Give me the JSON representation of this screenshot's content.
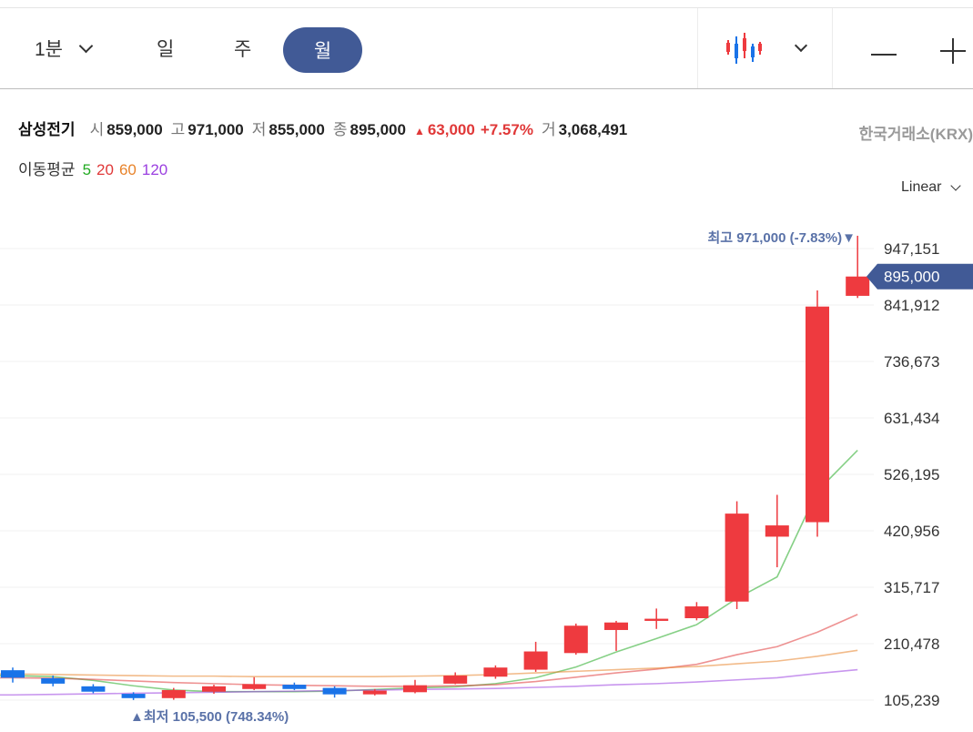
{
  "toolbar": {
    "timeframes": {
      "minute": "1분",
      "day": "일",
      "week": "주",
      "month": "월"
    },
    "selected": "월"
  },
  "quote": {
    "name": "삼성전기",
    "open_label": "시",
    "open": "859,000",
    "high_label": "고",
    "high": "971,000",
    "low_label": "저",
    "low": "855,000",
    "close_label": "종",
    "close": "895,000",
    "change": "63,000",
    "change_pct": "+7.57%",
    "volume_label": "거",
    "volume": "3,068,491",
    "exchange": "한국거래소(KRX)"
  },
  "moving_average": {
    "label": "이동평균",
    "periods": [
      "5",
      "20",
      "60",
      "120"
    ],
    "colors": [
      "#22aa22",
      "#e03838",
      "#e8832a",
      "#9b40e0"
    ]
  },
  "scale": {
    "label": "Linear"
  },
  "colors": {
    "up": "#ee3a3f",
    "down": "#1a73e8",
    "accent": "#415a96"
  },
  "chart_data": {
    "type": "candlestick",
    "y_ticks": [
      {
        "value": 947151,
        "label": "947,151"
      },
      {
        "value": 841912,
        "label": "841,912"
      },
      {
        "value": 736673,
        "label": "736,673"
      },
      {
        "value": 631434,
        "label": "631,434"
      },
      {
        "value": 526195,
        "label": "526,195"
      },
      {
        "value": 420956,
        "label": "420,956"
      },
      {
        "value": 315717,
        "label": "315,717"
      },
      {
        "value": 210478,
        "label": "210,478"
      },
      {
        "value": 105239,
        "label": "105,239"
      }
    ],
    "current": {
      "value": 895000,
      "label": "895,000"
    },
    "high_marker": {
      "value": 971000,
      "text": "최고 971,000 (-7.83%)▼"
    },
    "low_marker": {
      "value": 105500,
      "text": "▲최저 105,500 (748.34%)"
    },
    "candles": [
      {
        "o": 161000,
        "h": 166000,
        "l": 138000,
        "c": 147000
      },
      {
        "o": 146000,
        "h": 151000,
        "l": 131000,
        "c": 136000
      },
      {
        "o": 131000,
        "h": 135000,
        "l": 118000,
        "c": 121000
      },
      {
        "o": 117000,
        "h": 120000,
        "l": 105500,
        "c": 109000
      },
      {
        "o": 109000,
        "h": 128000,
        "l": 106000,
        "c": 124000
      },
      {
        "o": 121000,
        "h": 134000,
        "l": 117000,
        "c": 131000
      },
      {
        "o": 126000,
        "h": 148000,
        "l": 124000,
        "c": 135000
      },
      {
        "o": 134000,
        "h": 138000,
        "l": 124000,
        "c": 126000
      },
      {
        "o": 128000,
        "h": 131000,
        "l": 110000,
        "c": 116000
      },
      {
        "o": 116000,
        "h": 126000,
        "l": 114000,
        "c": 123000
      },
      {
        "o": 120000,
        "h": 143000,
        "l": 118000,
        "c": 133000
      },
      {
        "o": 136000,
        "h": 157000,
        "l": 135000,
        "c": 151000
      },
      {
        "o": 149000,
        "h": 170000,
        "l": 145000,
        "c": 166000
      },
      {
        "o": 162000,
        "h": 214000,
        "l": 158000,
        "c": 196000
      },
      {
        "o": 193000,
        "h": 248000,
        "l": 190000,
        "c": 244000
      },
      {
        "o": 236000,
        "h": 253000,
        "l": 197000,
        "c": 250000
      },
      {
        "o": 253000,
        "h": 276000,
        "l": 238000,
        "c": 257000
      },
      {
        "o": 258000,
        "h": 288000,
        "l": 254000,
        "c": 280000
      },
      {
        "o": 289000,
        "h": 476000,
        "l": 275000,
        "c": 453000
      },
      {
        "o": 410000,
        "h": 488000,
        "l": 353000,
        "c": 431000
      },
      {
        "o": 437000,
        "h": 869000,
        "l": 410000,
        "c": 839000
      },
      {
        "o": 859000,
        "h": 971000,
        "l": 855000,
        "c": 895000
      }
    ],
    "ma_series": [
      {
        "period": "5",
        "values": [
          151000,
          149000,
          142000,
          132000,
          124000,
          121000,
          121000,
          121000,
          122000,
          125000,
          128000,
          130000,
          136000,
          147000,
          167000,
          195000,
          220000,
          246000,
          295000,
          335000,
          495000,
          571000
        ]
      },
      {
        "period": "20",
        "values": [
          147000,
          146000,
          144000,
          141000,
          138000,
          136000,
          134000,
          133000,
          132000,
          131000,
          131000,
          132000,
          134000,
          140000,
          148000,
          156000,
          163000,
          172000,
          190000,
          205000,
          232000,
          265000
        ]
      },
      {
        "period": "60",
        "values": [
          154000,
          153000,
          152000,
          151000,
          150000,
          150000,
          149000,
          149000,
          149000,
          149000,
          150000,
          151000,
          153000,
          156000,
          159000,
          162000,
          165000,
          168000,
          173000,
          178000,
          187000,
          198000
        ]
      },
      {
        "period": "120",
        "values": [
          115000,
          116000,
          117000,
          118000,
          119000,
          120000,
          121000,
          122000,
          123000,
          124000,
          125000,
          126000,
          127000,
          129000,
          131000,
          134000,
          136000,
          139000,
          143000,
          147000,
          155000,
          162000
        ]
      }
    ]
  }
}
